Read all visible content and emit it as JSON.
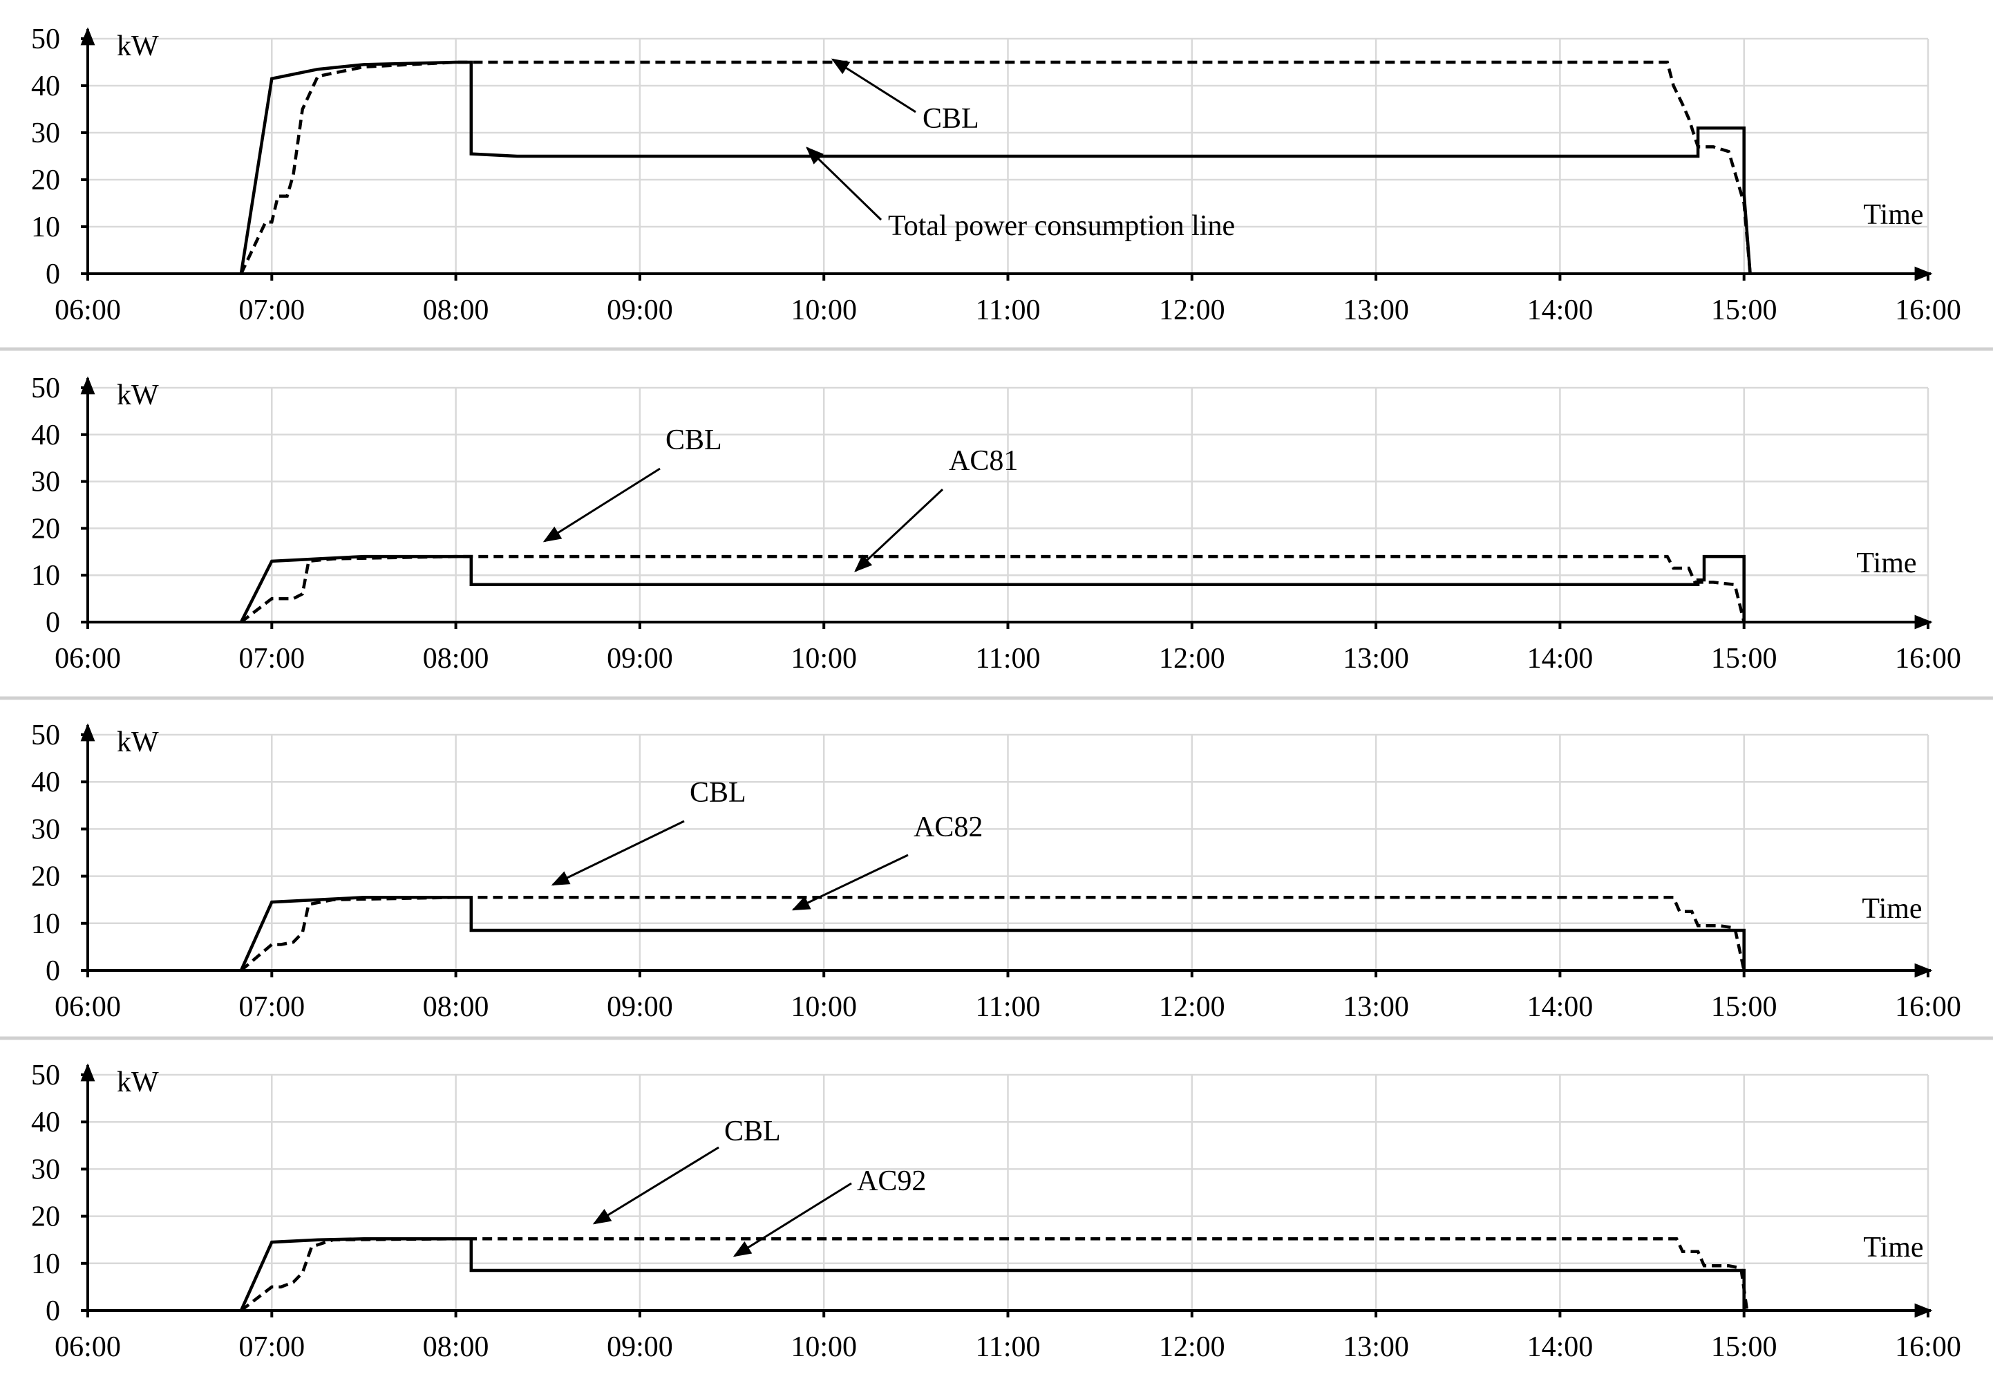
{
  "chart_data": [
    {
      "type": "line",
      "ylabel": "kW",
      "xlabel": "Time",
      "ylim": [
        0,
        50
      ],
      "yticks": [
        "0",
        "10",
        "20",
        "30",
        "40",
        "50"
      ],
      "xticks": [
        "06:00",
        "07:00",
        "08:00",
        "09:00",
        "10:00",
        "11:00",
        "12:00",
        "13:00",
        "14:00",
        "15:00",
        "16:00"
      ],
      "grid": true,
      "series": [
        {
          "name": "Total power consumption line",
          "style": "solid",
          "x": [
            "06:50",
            "07:00",
            "07:15",
            "07:30",
            "08:00",
            "08:05",
            "08:05",
            "08:20",
            "14:45",
            "14:45",
            "15:00",
            "15:00",
            "15:02"
          ],
          "y": [
            0,
            41.5,
            43.5,
            44.5,
            45,
            45,
            25.5,
            25,
            25,
            31,
            31,
            17,
            0
          ]
        },
        {
          "name": "CBL",
          "style": "dashed",
          "x": [
            "06:50",
            "06:58",
            "07:00",
            "07:02",
            "07:05",
            "07:07",
            "07:10",
            "07:15",
            "07:30",
            "08:00",
            "14:35",
            "14:37",
            "14:40",
            "14:42",
            "14:45",
            "14:50",
            "14:55",
            "15:00",
            "15:02"
          ],
          "y": [
            0,
            11,
            11,
            16.5,
            16.5,
            21,
            35,
            42,
            44,
            45,
            45,
            40,
            36,
            33,
            27,
            27,
            26,
            15,
            0
          ]
        }
      ],
      "annotations": [
        {
          "text": "CBL",
          "target": "CBL"
        },
        {
          "text": "Total power consumption line",
          "target": "Total power consumption line"
        }
      ]
    },
    {
      "type": "line",
      "ylabel": "kW",
      "xlabel": "Time",
      "ylim": [
        0,
        50
      ],
      "yticks": [
        "0",
        "10",
        "20",
        "30",
        "40",
        "50"
      ],
      "xticks": [
        "06:00",
        "07:00",
        "08:00",
        "09:00",
        "10:00",
        "11:00",
        "12:00",
        "13:00",
        "14:00",
        "15:00",
        "16:00"
      ],
      "grid": true,
      "series": [
        {
          "name": "AC81",
          "style": "solid",
          "x": [
            "06:50",
            "07:00",
            "07:15",
            "07:30",
            "08:00",
            "08:05",
            "08:05",
            "14:45",
            "14:45",
            "14:47",
            "14:47",
            "15:00",
            "15:00"
          ],
          "y": [
            0,
            13,
            13.5,
            14,
            14,
            14,
            8,
            8,
            9,
            9,
            14,
            14,
            0
          ]
        },
        {
          "name": "CBL",
          "style": "dashed",
          "x": [
            "06:50",
            "07:00",
            "07:03",
            "07:07",
            "07:10",
            "07:12",
            "07:20",
            "08:00",
            "14:35",
            "14:37",
            "14:42",
            "14:44",
            "14:50",
            "14:57",
            "15:00"
          ],
          "y": [
            0,
            5,
            5,
            5,
            6,
            13,
            13.5,
            14,
            14,
            11.5,
            11.5,
            8.5,
            8.5,
            8,
            0
          ]
        }
      ],
      "annotations": [
        {
          "text": "CBL",
          "target": "CBL"
        },
        {
          "text": "AC81",
          "target": "AC81"
        }
      ]
    },
    {
      "type": "line",
      "ylabel": "kW",
      "xlabel": "Time",
      "ylim": [
        0,
        50
      ],
      "yticks": [
        "0",
        "10",
        "20",
        "30",
        "40",
        "50"
      ],
      "xticks": [
        "06:00",
        "07:00",
        "08:00",
        "09:00",
        "10:00",
        "11:00",
        "12:00",
        "13:00",
        "14:00",
        "15:00",
        "16:00"
      ],
      "grid": true,
      "series": [
        {
          "name": "AC82",
          "style": "solid",
          "x": [
            "06:50",
            "07:00",
            "07:15",
            "07:30",
            "08:00",
            "08:05",
            "08:05",
            "14:57",
            "15:00",
            "15:00"
          ],
          "y": [
            0,
            14.5,
            15,
            15.5,
            15.5,
            15.5,
            8.5,
            8.5,
            8.5,
            0
          ]
        },
        {
          "name": "CBL",
          "style": "dashed",
          "x": [
            "06:50",
            "07:00",
            "07:03",
            "07:07",
            "07:10",
            "07:12",
            "07:20",
            "08:00",
            "14:37",
            "14:39",
            "14:43",
            "14:45",
            "14:52",
            "14:57",
            "15:00"
          ],
          "y": [
            0,
            5.5,
            5.5,
            6,
            8,
            14,
            15,
            15.5,
            15.5,
            12.5,
            12.5,
            9.5,
            9.5,
            9,
            0
          ]
        }
      ],
      "annotations": [
        {
          "text": "CBL",
          "target": "CBL"
        },
        {
          "text": "AC82",
          "target": "AC82"
        }
      ]
    },
    {
      "type": "line",
      "ylabel": "kW",
      "xlabel": "Time",
      "ylim": [
        0,
        50
      ],
      "yticks": [
        "0",
        "10",
        "20",
        "30",
        "40",
        "50"
      ],
      "xticks": [
        "06:00",
        "07:00",
        "08:00",
        "09:00",
        "10:00",
        "11:00",
        "12:00",
        "13:00",
        "14:00",
        "15:00",
        "16:00"
      ],
      "grid": true,
      "series": [
        {
          "name": "AC92",
          "style": "solid",
          "x": [
            "06:50",
            "07:00",
            "07:15",
            "07:30",
            "08:00",
            "08:05",
            "08:05",
            "14:58",
            "15:00",
            "15:00"
          ],
          "y": [
            0,
            14.5,
            15,
            15.2,
            15.2,
            15.2,
            8.5,
            8.5,
            8.5,
            0
          ]
        },
        {
          "name": "CBL",
          "style": "dashed",
          "x": [
            "06:50",
            "07:00",
            "07:03",
            "07:07",
            "07:10",
            "07:13",
            "07:20",
            "08:00",
            "14:38",
            "14:40",
            "14:45",
            "14:47",
            "14:55",
            "14:59",
            "15:01"
          ],
          "y": [
            0,
            5,
            5,
            6,
            8,
            13.5,
            15,
            15.2,
            15.2,
            12.5,
            12.5,
            9.5,
            9.5,
            9,
            0
          ]
        }
      ],
      "annotations": [
        {
          "text": "CBL",
          "target": "CBL"
        },
        {
          "text": "AC92",
          "target": "AC92"
        }
      ]
    }
  ]
}
